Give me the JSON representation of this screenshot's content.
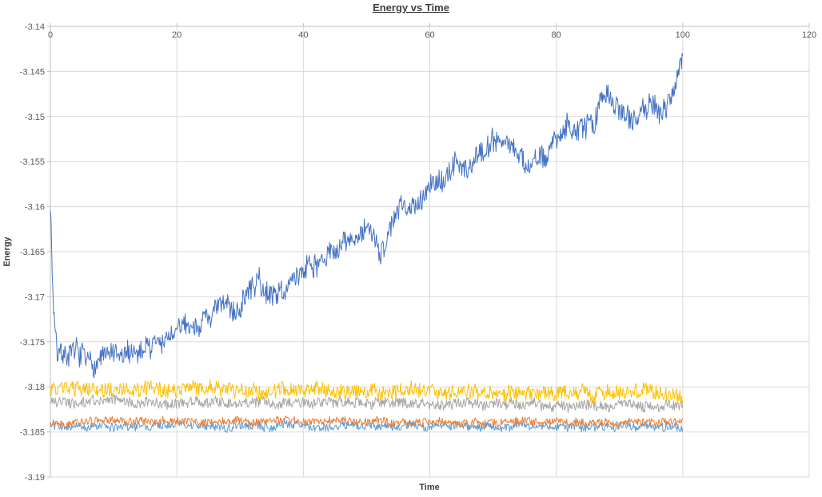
{
  "chart_data": {
    "type": "line",
    "title": "Energy vs Time",
    "xlabel": "Time",
    "ylabel": "Energy",
    "legend": "none",
    "grid": true,
    "x_axis": {
      "min": 0,
      "max": 120,
      "ticks": [
        0,
        20,
        40,
        60,
        80,
        100,
        120
      ]
    },
    "y_axis": {
      "min": -3.19,
      "max": -3.14,
      "ticks": [
        -3.14,
        -3.145,
        -3.15,
        -3.155,
        -3.16,
        -3.165,
        -3.17,
        -3.175,
        -3.18,
        -3.185,
        -3.19
      ],
      "tick_labels": [
        "-3.14",
        "-3.145",
        "-3.15",
        "-3.155",
        "-3.16",
        "-3.165",
        "-3.17",
        "-3.175",
        "-3.18",
        "-3.185",
        "-3.19"
      ]
    },
    "colors": {
      "grid": "#d9d9d9",
      "axis": "#bfbfbf",
      "tick_text": "#595959",
      "title_text": "#3f3f3f"
    },
    "series": [
      {
        "name": "series-lightblue",
        "color": "#5B9BD5",
        "x_start": 0,
        "x_end": 100,
        "points": 900,
        "seed": 45,
        "noise": 0.00045,
        "wander": 0.0002,
        "trend": [
          [
            0,
            -3.1843
          ],
          [
            100,
            -3.1844
          ]
        ]
      },
      {
        "name": "series-orange",
        "color": "#ED7D31",
        "x_start": 0,
        "x_end": 100,
        "points": 900,
        "seed": 13,
        "noise": 0.0004,
        "wander": 0.0002,
        "trend": [
          [
            0,
            -3.1838
          ],
          [
            100,
            -3.1839
          ]
        ]
      },
      {
        "name": "series-gray",
        "color": "#A5A5A5",
        "x_start": 0,
        "x_end": 100,
        "points": 900,
        "seed": 21,
        "noise": 0.0006,
        "wander": 0.00025,
        "trend": [
          [
            0,
            -3.1816
          ],
          [
            100,
            -3.1821
          ]
        ]
      },
      {
        "name": "series-yellow",
        "color": "#FFC000",
        "x_start": 0,
        "x_end": 100,
        "points": 900,
        "seed": 33,
        "noise": 0.0008,
        "wander": 0.0003,
        "trend": [
          [
            0,
            -3.1803
          ],
          [
            100,
            -3.1807
          ]
        ]
      },
      {
        "name": "series-blue",
        "color": "#4472C4",
        "x_start": 0,
        "x_end": 100,
        "points": 1000,
        "seed": 7,
        "noise": 0.0012,
        "wander": 0.0008,
        "trend": [
          [
            0,
            -3.159
          ],
          [
            0.4,
            -3.17
          ],
          [
            1,
            -3.1755
          ],
          [
            3,
            -3.176
          ],
          [
            6,
            -3.1775
          ],
          [
            9,
            -3.1765
          ],
          [
            12,
            -3.177
          ],
          [
            15,
            -3.1755
          ],
          [
            18,
            -3.175
          ],
          [
            21,
            -3.1735
          ],
          [
            24,
            -3.1725
          ],
          [
            27,
            -3.1715
          ],
          [
            30,
            -3.171
          ],
          [
            33,
            -3.168
          ],
          [
            34,
            -3.17
          ],
          [
            36,
            -3.1695
          ],
          [
            39,
            -3.168
          ],
          [
            41,
            -3.1655
          ],
          [
            43,
            -3.1665
          ],
          [
            45,
            -3.165
          ],
          [
            47,
            -3.164
          ],
          [
            50,
            -3.163
          ],
          [
            52,
            -3.1645
          ],
          [
            54,
            -3.162
          ],
          [
            56,
            -3.16
          ],
          [
            58,
            -3.159
          ],
          [
            60,
            -3.1575
          ],
          [
            62,
            -3.157
          ],
          [
            64,
            -3.1555
          ],
          [
            66,
            -3.1555
          ],
          [
            68,
            -3.154
          ],
          [
            70,
            -3.1525
          ],
          [
            72,
            -3.152
          ],
          [
            74,
            -3.1545
          ],
          [
            76,
            -3.1555
          ],
          [
            78,
            -3.155
          ],
          [
            80,
            -3.152
          ],
          [
            82,
            -3.15
          ],
          [
            84,
            -3.1515
          ],
          [
            86,
            -3.1505
          ],
          [
            88,
            -3.147
          ],
          [
            90,
            -3.149
          ],
          [
            92,
            -3.15
          ],
          [
            94,
            -3.148
          ],
          [
            96,
            -3.149
          ],
          [
            98,
            -3.1485
          ],
          [
            100,
            -3.143
          ]
        ]
      }
    ]
  }
}
